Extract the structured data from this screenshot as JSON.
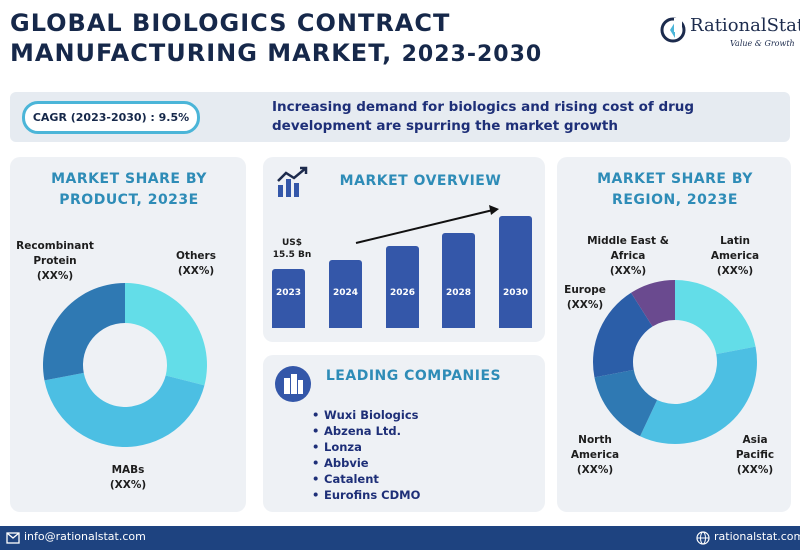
{
  "header": {
    "title_line1": "GLOBAL BIOLOGICS CONTRACT",
    "title_line2": "MANUFACTURING MARKET,",
    "title_years": "2023-2030"
  },
  "logo": {
    "name": "RationalStat",
    "tagline": "Value & Growth",
    "icon": "rationalstat-logo-icon"
  },
  "banner": {
    "cagr": "CAGR (2023-2030) : 9.5%",
    "tagline": "Increasing demand for biologics and rising cost of drug development are spurring the market growth"
  },
  "product_card": {
    "heading": "MARKET SHARE BY PRODUCT, 2023E",
    "labels": {
      "recombinant": [
        "Recombinant",
        "Protein",
        "(XX%)"
      ],
      "others": [
        "Others",
        "(XX%)"
      ],
      "mabs": [
        "MABs",
        "(XX%)"
      ]
    }
  },
  "overview_card": {
    "heading": "MARKET OVERVIEW",
    "icon": "growth-chart-icon",
    "value_label": [
      "US$",
      "15.5 Bn"
    ]
  },
  "companies_card": {
    "heading": "LEADING COMPANIES",
    "icon": "buildings-icon",
    "items": [
      "Wuxi Biologics",
      "Abzena Ltd.",
      "Lonza",
      "Abbvie",
      "Catalent",
      "Eurofins CDMO"
    ]
  },
  "region_card": {
    "heading": "MARKET SHARE BY REGION, 2023E",
    "labels": {
      "mea": [
        "Middle East &",
        "Africa",
        "(XX%)"
      ],
      "latam": [
        "Latin",
        "America",
        "(XX%)"
      ],
      "europe": [
        "Europe",
        "(XX%)"
      ],
      "na": [
        "North",
        "America",
        "(XX%)"
      ],
      "apac": [
        "Asia",
        "Pacific",
        "(XX%)"
      ]
    }
  },
  "footer": {
    "email": "info@rationalstat.com",
    "website": "rationalstat.com",
    "email_icon": "mail-icon",
    "web_icon": "globe-icon"
  },
  "colors": {
    "navy": "#16284a",
    "accent_blue": "#2e8cb7",
    "bar_blue": "#3457a9",
    "donut_light": "#63dde8",
    "donut_mid": "#4cbfe3",
    "donut_dark": "#2f79b3",
    "donut_deep": "#2b5ea8",
    "donut_purple": "#6a4a8f",
    "footer": "#1e4380"
  },
  "chart_data": [
    {
      "type": "pie",
      "title": "MARKET SHARE BY PRODUCT, 2023E",
      "categories": [
        "Others",
        "MABs",
        "Recombinant Protein"
      ],
      "values": [
        29,
        43,
        28
      ],
      "colors": [
        "#63dde8",
        "#4cbfe3",
        "#2f79b3"
      ],
      "donut": true
    },
    {
      "type": "bar",
      "title": "MARKET OVERVIEW",
      "categories": [
        "2023",
        "2024",
        "2026",
        "2028",
        "2030"
      ],
      "values": [
        15.5,
        18,
        21.5,
        25,
        29.5
      ],
      "annotation": "US$ 15.5 Bn"
    },
    {
      "type": "pie",
      "title": "MARKET SHARE BY REGION, 2023E",
      "categories": [
        "Latin America",
        "Asia Pacific",
        "North America",
        "Europe",
        "Middle East & Africa"
      ],
      "values": [
        22,
        35,
        15,
        19,
        9
      ],
      "colors": [
        "#63dde8",
        "#4cbfe3",
        "#2f79b3",
        "#2b5ea8",
        "#6a4a8f"
      ],
      "donut": true
    }
  ]
}
